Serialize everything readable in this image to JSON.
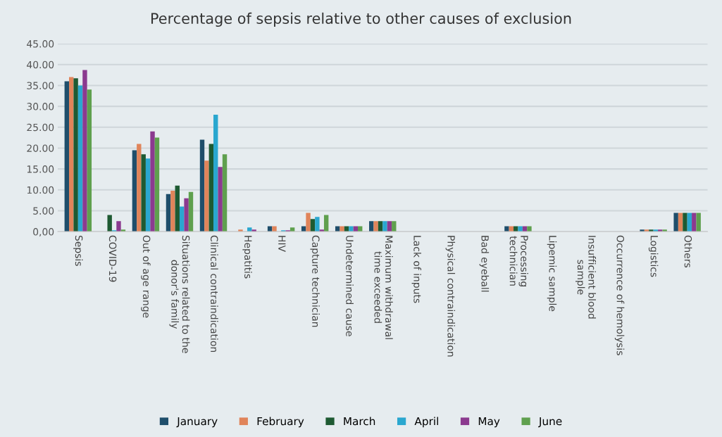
{
  "chart_data": {
    "type": "bar",
    "title": "Percentage of sepsis relative to other causes of exclusion",
    "categories": [
      "Sepsis",
      "COVID-19",
      "Out of age range",
      "Situations related to the\ndonor's family",
      "Clinical contraindication",
      "Hepatitis",
      "HIV",
      "Capture technician",
      "Undetermined cause",
      "Maximum withdrawal\ntime exceeded",
      "Lack of inputs",
      "Physical contraindication",
      "Bad eyeball",
      "Processing\ntechnician",
      "Lipemic sample",
      "Insufficient blood\nsample",
      "Occurrence of hemolysis",
      "Logistics",
      "Others"
    ],
    "series": [
      {
        "name": "January",
        "color": "#1f4e6b",
        "values": [
          36,
          0,
          19.5,
          9,
          22,
          0,
          1.3,
          1.3,
          1.3,
          2.5,
          0,
          0,
          0,
          1.3,
          0,
          0,
          0,
          0.5,
          4.5
        ]
      },
      {
        "name": "February",
        "color": "#e0845a",
        "values": [
          37,
          0,
          21,
          9.8,
          17,
          0.5,
          1.3,
          4.5,
          1.3,
          2.5,
          0,
          0,
          0,
          1.3,
          0,
          0,
          0,
          0.5,
          4.5
        ]
      },
      {
        "name": "March",
        "color": "#1e5a32",
        "values": [
          36.7,
          4,
          18.5,
          11,
          21,
          0,
          0,
          3,
          1.3,
          2.5,
          0,
          0,
          0,
          1.3,
          0,
          0,
          0,
          0.5,
          4.5
        ]
      },
      {
        "name": "April",
        "color": "#2aa7cf",
        "values": [
          35,
          0.3,
          17.5,
          6,
          28,
          1,
          0.3,
          3.5,
          1.3,
          2.5,
          0,
          0,
          0,
          1.3,
          0,
          0,
          0,
          0.5,
          4.5
        ]
      },
      {
        "name": "May",
        "color": "#8b3a8f",
        "values": [
          38.7,
          2.5,
          24,
          8,
          15.5,
          0.5,
          0.3,
          0.5,
          1.3,
          2.5,
          0,
          0,
          0,
          1.3,
          0,
          0,
          0,
          0.5,
          4.5
        ]
      },
      {
        "name": "June",
        "color": "#5fa04e",
        "values": [
          34,
          0.5,
          22.5,
          9.5,
          18.5,
          null,
          1,
          4,
          1.3,
          2.5,
          0,
          0,
          0,
          1.3,
          0,
          0,
          0,
          0.5,
          4.5
        ]
      }
    ],
    "ylim": [
      0,
      45
    ],
    "yticks": [
      {
        "value": 0,
        "label": "0,00"
      },
      {
        "value": 5,
        "label": "5.00"
      },
      {
        "value": 10,
        "label": "10.00"
      },
      {
        "value": 15,
        "label": "15.00"
      },
      {
        "value": 20,
        "label": "20.00"
      },
      {
        "value": 25,
        "label": "25.00"
      },
      {
        "value": 30,
        "label": "30.00"
      },
      {
        "value": 35,
        "label": "35.00"
      },
      {
        "value": 40,
        "label": "40.00"
      },
      {
        "value": 45,
        "label": "45.00"
      }
    ],
    "grid": "y",
    "legend": "bottom"
  }
}
